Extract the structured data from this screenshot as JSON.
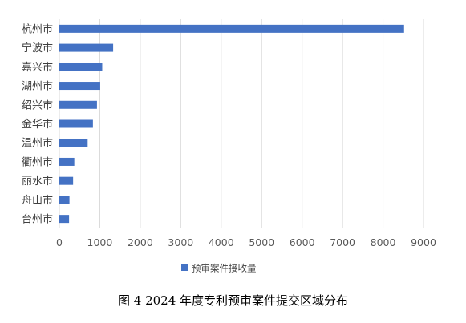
{
  "chart_data": {
    "type": "bar",
    "orientation": "horizontal",
    "categories": [
      "杭州市",
      "宁波市",
      "嘉兴市",
      "湖州市",
      "绍兴市",
      "金华市",
      "温州市",
      "衢州市",
      "丽水市",
      "舟山市",
      "台州市"
    ],
    "series": [
      {
        "name": "预审案件接收量",
        "values": [
          8520,
          1330,
          1060,
          1010,
          930,
          830,
          700,
          370,
          340,
          250,
          240
        ],
        "color": "#4472C4"
      }
    ],
    "xlim": [
      0,
      9000
    ],
    "xticks": [
      0,
      1000,
      2000,
      3000,
      4000,
      5000,
      6000,
      7000,
      8000,
      9000
    ],
    "grid": "vertical",
    "legend_position": "bottom"
  },
  "caption": "图 4  2024 年度专利预审案件提交区域分布"
}
